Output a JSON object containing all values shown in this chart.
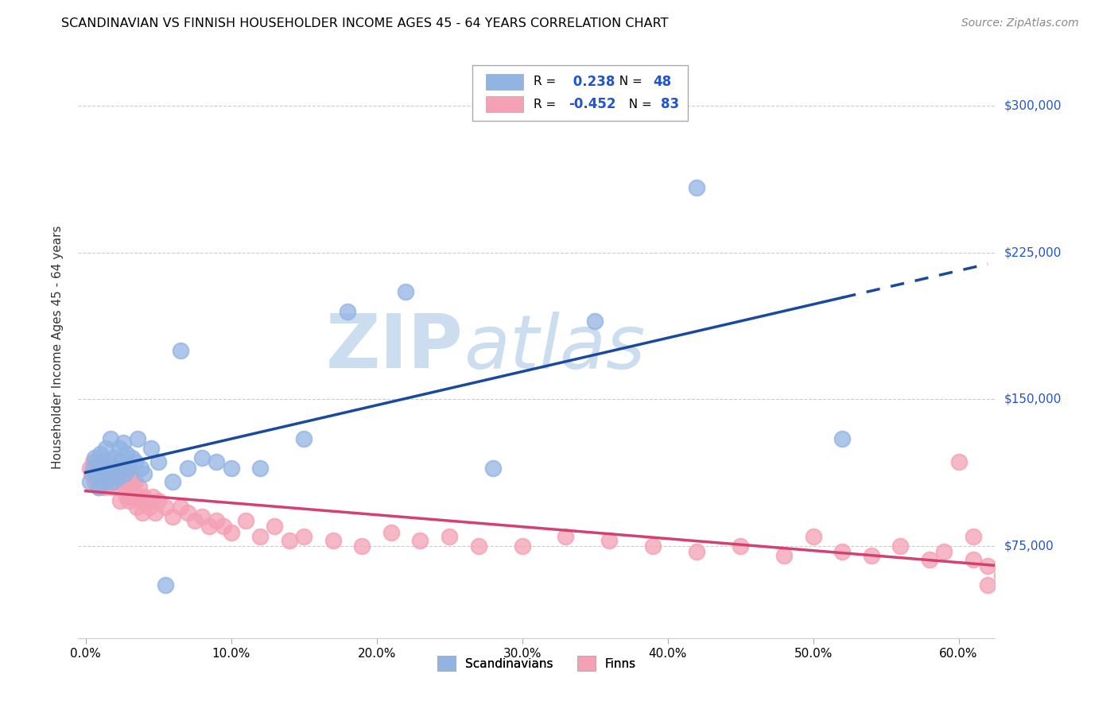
{
  "title": "SCANDINAVIAN VS FINNISH HOUSEHOLDER INCOME AGES 45 - 64 YEARS CORRELATION CHART",
  "source": "Source: ZipAtlas.com",
  "ylabel": "Householder Income Ages 45 - 64 years",
  "xlabel_ticks": [
    "0.0%",
    "10.0%",
    "20.0%",
    "30.0%",
    "40.0%",
    "50.0%",
    "60.0%"
  ],
  "xlabel_vals": [
    0.0,
    0.1,
    0.2,
    0.3,
    0.4,
    0.5,
    0.6
  ],
  "ytick_labels": [
    "$75,000",
    "$150,000",
    "$225,000",
    "$300,000"
  ],
  "ytick_vals": [
    75000,
    150000,
    225000,
    300000
  ],
  "ylim": [
    28000,
    325000
  ],
  "xlim": [
    -0.005,
    0.625
  ],
  "r_scand": "0.238",
  "n_scand": 48,
  "r_finn": "-0.452",
  "n_finn": 83,
  "scand_color": "#92b4e3",
  "finn_color": "#f4a0b5",
  "scand_line_color": "#1a4a9e",
  "finn_line_color": "#d44070",
  "watermark_zip": "ZIP",
  "watermark_atlas": "atlas",
  "watermark_color": "#ccddf0",
  "legend_blue": "#2255cc",
  "scand_x": [
    0.003,
    0.005,
    0.006,
    0.007,
    0.008,
    0.009,
    0.01,
    0.011,
    0.012,
    0.013,
    0.014,
    0.015,
    0.016,
    0.017,
    0.018,
    0.019,
    0.02,
    0.021,
    0.022,
    0.023,
    0.024,
    0.025,
    0.026,
    0.027,
    0.028,
    0.03,
    0.032,
    0.034,
    0.036,
    0.038,
    0.04,
    0.045,
    0.05,
    0.055,
    0.06,
    0.065,
    0.07,
    0.08,
    0.09,
    0.1,
    0.12,
    0.15,
    0.18,
    0.22,
    0.28,
    0.35,
    0.42,
    0.52
  ],
  "scand_y": [
    108000,
    115000,
    120000,
    112000,
    118000,
    105000,
    122000,
    110000,
    115000,
    108000,
    125000,
    112000,
    118000,
    130000,
    108000,
    115000,
    120000,
    112000,
    110000,
    125000,
    118000,
    115000,
    128000,
    112000,
    122000,
    115000,
    120000,
    118000,
    130000,
    115000,
    112000,
    125000,
    118000,
    55000,
    108000,
    175000,
    115000,
    120000,
    118000,
    115000,
    115000,
    130000,
    195000,
    205000,
    115000,
    190000,
    258000,
    130000
  ],
  "finn_x": [
    0.003,
    0.004,
    0.005,
    0.006,
    0.007,
    0.008,
    0.009,
    0.01,
    0.011,
    0.012,
    0.013,
    0.014,
    0.015,
    0.016,
    0.017,
    0.018,
    0.019,
    0.02,
    0.021,
    0.022,
    0.023,
    0.024,
    0.025,
    0.026,
    0.027,
    0.028,
    0.029,
    0.03,
    0.031,
    0.032,
    0.033,
    0.034,
    0.035,
    0.036,
    0.037,
    0.038,
    0.039,
    0.04,
    0.042,
    0.044,
    0.046,
    0.048,
    0.05,
    0.055,
    0.06,
    0.065,
    0.07,
    0.075,
    0.08,
    0.085,
    0.09,
    0.095,
    0.1,
    0.11,
    0.12,
    0.13,
    0.14,
    0.15,
    0.17,
    0.19,
    0.21,
    0.23,
    0.25,
    0.27,
    0.3,
    0.33,
    0.36,
    0.39,
    0.42,
    0.45,
    0.48,
    0.5,
    0.52,
    0.54,
    0.56,
    0.58,
    0.59,
    0.6,
    0.61,
    0.62,
    0.63,
    0.62,
    0.61
  ],
  "finn_y": [
    115000,
    112000,
    118000,
    108000,
    115000,
    110000,
    105000,
    112000,
    108000,
    118000,
    105000,
    112000,
    108000,
    115000,
    110000,
    105000,
    112000,
    108000,
    115000,
    110000,
    105000,
    98000,
    112000,
    108000,
    115000,
    100000,
    108000,
    98000,
    112000,
    105000,
    100000,
    108000,
    95000,
    100000,
    105000,
    98000,
    92000,
    100000,
    98000,
    95000,
    100000,
    92000,
    98000,
    95000,
    90000,
    95000,
    92000,
    88000,
    90000,
    85000,
    88000,
    85000,
    82000,
    88000,
    80000,
    85000,
    78000,
    80000,
    78000,
    75000,
    82000,
    78000,
    80000,
    75000,
    75000,
    80000,
    78000,
    75000,
    72000,
    75000,
    70000,
    80000,
    72000,
    70000,
    75000,
    68000,
    72000,
    118000,
    68000,
    65000,
    60000,
    55000,
    80000
  ]
}
